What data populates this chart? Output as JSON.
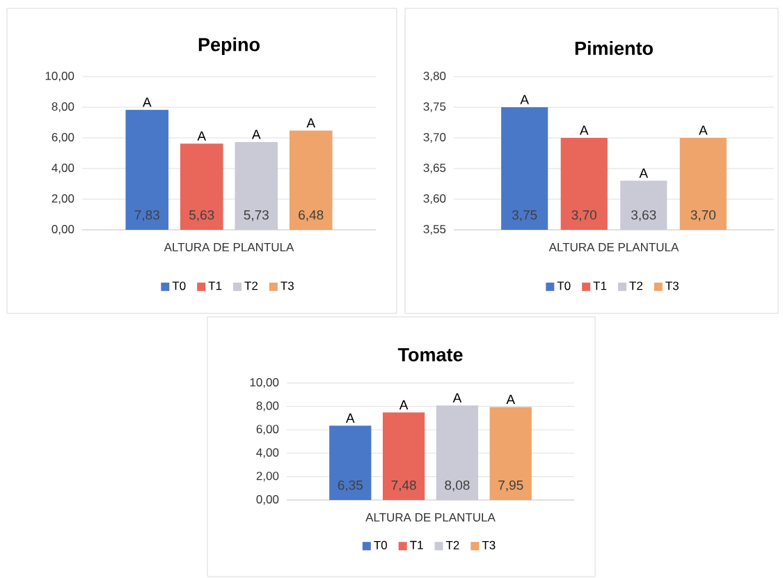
{
  "chart_data": [
    {
      "type": "bar",
      "title": "Pepino",
      "categories": [
        "ALTURA DE PLANTULA"
      ],
      "series": [
        {
          "name": "T0",
          "color": "#4a78c8",
          "values": [
            7.83
          ],
          "value_labels": [
            "7,83"
          ]
        },
        {
          "name": "T1",
          "color": "#e8675a",
          "values": [
            5.63
          ],
          "value_labels": [
            "5,63"
          ]
        },
        {
          "name": "T2",
          "color": "#c9cad6",
          "values": [
            5.73
          ],
          "value_labels": [
            "5,73"
          ]
        },
        {
          "name": "T3",
          "color": "#eea46a",
          "values": [
            6.48
          ],
          "value_labels": [
            "6,48"
          ]
        }
      ],
      "ylim": [
        0,
        10
      ],
      "yticks": [
        {
          "value": 0,
          "label": "0,00"
        },
        {
          "value": 2,
          "label": "2,00"
        },
        {
          "value": 4,
          "label": "4,00"
        },
        {
          "value": 6,
          "label": "6,00"
        },
        {
          "value": 8,
          "label": "8,00"
        },
        {
          "value": 10,
          "label": "10,00"
        }
      ],
      "annotations": [
        "A",
        "A",
        "A",
        "A"
      ],
      "grid": "y",
      "legend": "bottom"
    },
    {
      "type": "bar",
      "title": "Pimiento",
      "categories": [
        "ALTURA DE PLANTULA"
      ],
      "series": [
        {
          "name": "T0",
          "color": "#4a78c8",
          "values": [
            3.75
          ],
          "value_labels": [
            "3,75"
          ]
        },
        {
          "name": "T1",
          "color": "#e8675a",
          "values": [
            3.7
          ],
          "value_labels": [
            "3,70"
          ]
        },
        {
          "name": "T2",
          "color": "#c9cad6",
          "values": [
            3.63
          ],
          "value_labels": [
            "3,63"
          ]
        },
        {
          "name": "T3",
          "color": "#eea46a",
          "values": [
            3.7
          ],
          "value_labels": [
            "3,70"
          ]
        }
      ],
      "ylim": [
        3.55,
        3.8
      ],
      "yticks": [
        {
          "value": 3.55,
          "label": "3,55"
        },
        {
          "value": 3.6,
          "label": "3,60"
        },
        {
          "value": 3.65,
          "label": "3,65"
        },
        {
          "value": 3.7,
          "label": "3,70"
        },
        {
          "value": 3.75,
          "label": "3,75"
        },
        {
          "value": 3.8,
          "label": "3,80"
        }
      ],
      "annotations": [
        "A",
        "A",
        "A",
        "A"
      ],
      "grid": "y",
      "legend": "bottom"
    },
    {
      "type": "bar",
      "title": "Tomate",
      "categories": [
        "ALTURA DE PLANTULA"
      ],
      "series": [
        {
          "name": "T0",
          "color": "#4a78c8",
          "values": [
            6.35
          ],
          "value_labels": [
            "6,35"
          ]
        },
        {
          "name": "T1",
          "color": "#e8675a",
          "values": [
            7.48
          ],
          "value_labels": [
            "7,48"
          ]
        },
        {
          "name": "T2",
          "color": "#c9cad6",
          "values": [
            8.08
          ],
          "value_labels": [
            "8,08"
          ]
        },
        {
          "name": "T3",
          "color": "#eea46a",
          "values": [
            7.95
          ],
          "value_labels": [
            "7,95"
          ]
        }
      ],
      "ylim": [
        0,
        10
      ],
      "yticks": [
        {
          "value": 0,
          "label": "0,00"
        },
        {
          "value": 2,
          "label": "2,00"
        },
        {
          "value": 4,
          "label": "4,00"
        },
        {
          "value": 6,
          "label": "6,00"
        },
        {
          "value": 8,
          "label": "8,00"
        },
        {
          "value": 10,
          "label": "10,00"
        }
      ],
      "annotations": [
        "A",
        "A",
        "A",
        "A"
      ],
      "grid": "y",
      "legend": "bottom"
    }
  ]
}
